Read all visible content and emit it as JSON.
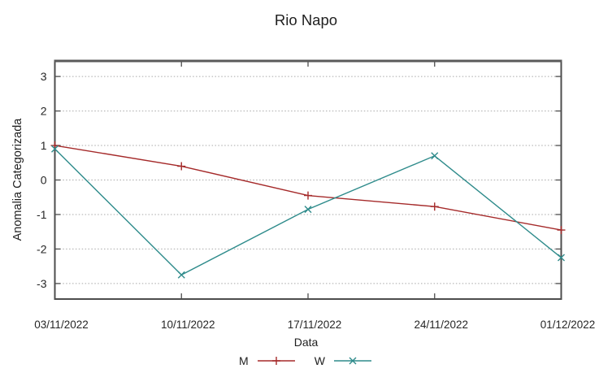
{
  "chart_data": {
    "type": "line",
    "title": "Rio Napo",
    "xlabel": "Data",
    "ylabel": "Anomalia Categorizada",
    "categories": [
      "03/11/2022",
      "10/11/2022",
      "17/11/2022",
      "24/11/2022",
      "01/12/2022"
    ],
    "y_ticks": [
      3,
      2,
      1,
      0,
      -1,
      -2,
      -3
    ],
    "ylim": [
      -3.45,
      3.45
    ],
    "grid": "horizontal-dotted",
    "legend_position": "bottom-center",
    "series": [
      {
        "name": "M",
        "marker": "plus",
        "color": "#a52a2a",
        "values": [
          1.0,
          0.4,
          -0.45,
          -0.77,
          -1.45
        ]
      },
      {
        "name": "W",
        "marker": "cross",
        "color": "#2e8b8b",
        "values": [
          0.9,
          -2.75,
          -0.85,
          0.7,
          -2.25
        ]
      }
    ]
  },
  "colors": {
    "grid": "#a9a9a9",
    "border": "#4d4d4d",
    "border_top": "#5a5a5a",
    "text": "#262626",
    "background": "#ffffff"
  }
}
